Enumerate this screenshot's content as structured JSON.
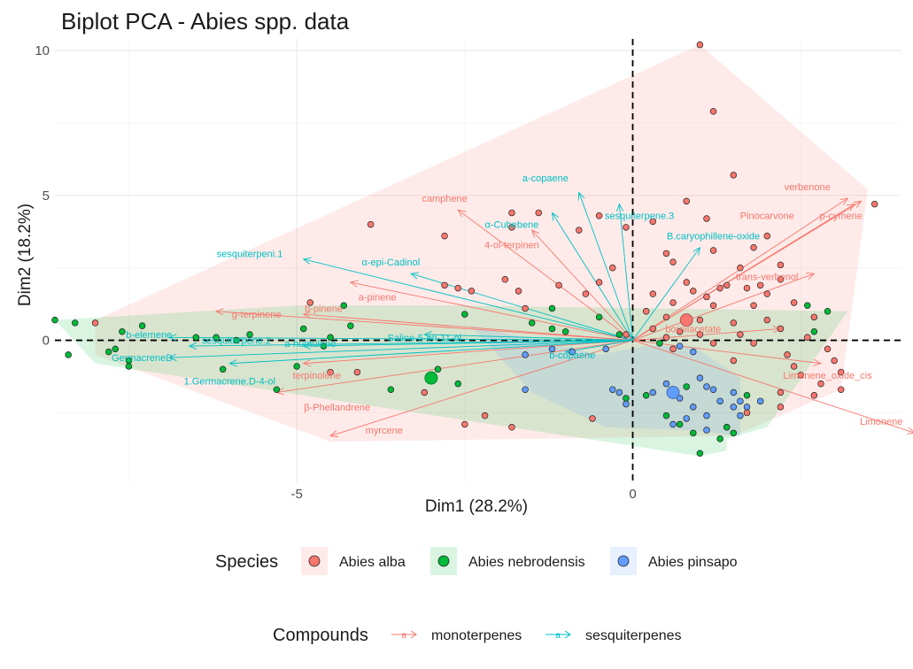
{
  "chart_data": {
    "type": "scatter",
    "title": "Biplot PCA - Abies spp. data",
    "xlabel": "Dim1 (28.2%)",
    "ylabel": "Dim2 (18.2%)",
    "xlim": [
      -8.6,
      4.0
    ],
    "ylim": [
      -4.9,
      10.4
    ],
    "x_ticks": [
      -5,
      0
    ],
    "y_ticks": [
      0,
      5,
      10
    ],
    "grid": true,
    "reference_lines": {
      "x": 0,
      "y": 0
    },
    "colors": {
      "Abies alba": "#f8766d",
      "Abies nebrodensis": "#00ba38",
      "Abies pinsapo": "#619cff",
      "monoterpenes": "#f8766d",
      "sesquiterpenes": "#00bfc4"
    },
    "species_legend": {
      "title": "Species",
      "entries": [
        "Abies alba",
        "Abies nebrodensis",
        "Abies pinsapo"
      ]
    },
    "compounds_legend": {
      "title": "Compounds",
      "key_glyph": "a",
      "entries": [
        "monoterpenes",
        "sesquiterpenes"
      ]
    },
    "legend_position": "bottom",
    "hulls": [
      {
        "species": "Abies alba",
        "points": [
          [
            -8.0,
            0.7
          ],
          [
            1.0,
            10.2
          ],
          [
            3.5,
            5.2
          ],
          [
            3.1,
            -1.7
          ],
          [
            1.5,
            -3.3
          ],
          [
            -4.5,
            -3.5
          ],
          [
            -8.0,
            -0.5
          ]
        ]
      },
      {
        "species": "Abies nebrodensis",
        "points": [
          [
            -8.6,
            0.7
          ],
          [
            -5.0,
            1.2
          ],
          [
            -2.5,
            1.2
          ],
          [
            3.2,
            1.0
          ],
          [
            2.0,
            -3.0
          ],
          [
            1.4,
            -3.4
          ],
          [
            1.4,
            -3.8
          ],
          [
            1.0,
            -4.0
          ],
          [
            -8.0,
            -0.8
          ]
        ]
      },
      {
        "species": "Abies pinsapo",
        "points": [
          [
            -2.4,
            0.5
          ],
          [
            -0.5,
            -0.5
          ],
          [
            0.2,
            -0.2
          ],
          [
            0.9,
            -0.2
          ],
          [
            1.6,
            -1.3
          ],
          [
            1.6,
            -3.3
          ],
          [
            0.8,
            -3.1
          ],
          [
            -0.4,
            -3.0
          ],
          [
            -1.5,
            -1.8
          ]
        ]
      }
    ],
    "points": {
      "Abies alba": [
        [
          1.0,
          10.2
        ],
        [
          1.2,
          7.9
        ],
        [
          3.6,
          4.7
        ],
        [
          -3.9,
          4.0
        ],
        [
          1.5,
          5.7
        ],
        [
          0.8,
          4.8
        ],
        [
          1.1,
          4.2
        ],
        [
          -1.8,
          4.4
        ],
        [
          -1.4,
          4.4
        ],
        [
          -0.5,
          4.3
        ],
        [
          -1.8,
          3.9
        ],
        [
          -2.8,
          3.6
        ],
        [
          -0.1,
          3.9
        ],
        [
          -0.8,
          3.8
        ],
        [
          0.3,
          4.1
        ],
        [
          2.0,
          3.6
        ],
        [
          0.5,
          3.0
        ],
        [
          1.2,
          3.1
        ],
        [
          1.8,
          3.2
        ],
        [
          0.6,
          2.7
        ],
        [
          2.2,
          2.6
        ],
        [
          0.8,
          2.0
        ],
        [
          1.6,
          2.5
        ],
        [
          0.9,
          1.7
        ],
        [
          1.1,
          1.5
        ],
        [
          1.3,
          1.8
        ],
        [
          1.4,
          1.9
        ],
        [
          1.9,
          1.9
        ],
        [
          2.2,
          2.1
        ],
        [
          1.7,
          1.8
        ],
        [
          2.0,
          1.6
        ],
        [
          0.3,
          1.6
        ],
        [
          0.6,
          1.3
        ],
        [
          1.2,
          1.2
        ],
        [
          -2.4,
          1.7
        ],
        [
          -2.6,
          1.8
        ],
        [
          -1.6,
          1.1
        ],
        [
          -1.7,
          1.7
        ],
        [
          -1.1,
          1.9
        ],
        [
          -1.9,
          2.1
        ],
        [
          -2.8,
          1.9
        ],
        [
          -0.7,
          1.6
        ],
        [
          -0.5,
          2.0
        ],
        [
          -0.3,
          2.5
        ],
        [
          0.2,
          1.0
        ],
        [
          0.5,
          0.8
        ],
        [
          1.0,
          0.7
        ],
        [
          1.5,
          0.6
        ],
        [
          2.0,
          0.7
        ],
        [
          1.8,
          1.2
        ],
        [
          2.4,
          1.3
        ],
        [
          2.7,
          0.8
        ],
        [
          2.2,
          0.4
        ],
        [
          1.6,
          0.2
        ],
        [
          1.8,
          -0.1
        ],
        [
          2.3,
          -0.5
        ],
        [
          2.6,
          0.1
        ],
        [
          2.9,
          -0.3
        ],
        [
          3.0,
          -0.7
        ],
        [
          3.1,
          -1.1
        ],
        [
          2.8,
          -1.5
        ],
        [
          2.5,
          -1.2
        ],
        [
          2.2,
          -1.8
        ],
        [
          2.7,
          -1.9
        ],
        [
          3.1,
          -1.7
        ],
        [
          2.4,
          -0.9
        ],
        [
          1.5,
          -0.7
        ],
        [
          1.2,
          -0.1
        ],
        [
          1.0,
          0.2
        ],
        [
          0.7,
          0.3
        ],
        [
          0.5,
          0.1
        ],
        [
          0.3,
          0.4
        ],
        [
          0.6,
          -0.3
        ],
        [
          -0.1,
          0.2
        ],
        [
          -8.0,
          0.6
        ],
        [
          -4.8,
          1.3
        ],
        [
          -4.5,
          -1.1
        ],
        [
          -4.1,
          -1.1
        ],
        [
          -2.5,
          -2.9
        ],
        [
          -2.2,
          -2.6
        ],
        [
          -1.8,
          -3.0
        ],
        [
          -3.1,
          -1.8
        ],
        [
          -0.6,
          -2.7
        ],
        [
          1.4,
          -3.0
        ],
        [
          2.2,
          -2.3
        ],
        [
          1.7,
          -2.5
        ]
      ],
      "Abies nebrodensis": [
        [
          -8.6,
          0.7
        ],
        [
          -8.3,
          0.6
        ],
        [
          -7.6,
          0.3
        ],
        [
          -7.3,
          0.5
        ],
        [
          -7.7,
          -0.3
        ],
        [
          -7.8,
          -0.4
        ],
        [
          -7.5,
          -0.7
        ],
        [
          -7.5,
          -0.9
        ],
        [
          -8.4,
          -0.5
        ],
        [
          -6.5,
          0.1
        ],
        [
          -6.2,
          0.1
        ],
        [
          -5.9,
          0.0
        ],
        [
          -5.7,
          0.2
        ],
        [
          -4.9,
          0.4
        ],
        [
          -4.6,
          -0.2
        ],
        [
          -4.5,
          0.1
        ],
        [
          -4.3,
          1.2
        ],
        [
          -4.2,
          0.5
        ],
        [
          -5.0,
          -0.9
        ],
        [
          -6.1,
          -1.0
        ],
        [
          -5.3,
          -1.7
        ],
        [
          -3.6,
          -1.7
        ],
        [
          -3.0,
          -1.3
        ],
        [
          -2.9,
          -1.0
        ],
        [
          -2.6,
          -1.5
        ],
        [
          -2.5,
          0.9
        ],
        [
          -1.5,
          0.6
        ],
        [
          -1.2,
          0.4
        ],
        [
          -1.0,
          0.3
        ],
        [
          -1.2,
          1.1
        ],
        [
          -0.5,
          0.8
        ],
        [
          -0.2,
          0.2
        ],
        [
          0.5,
          -2.6
        ],
        [
          0.9,
          -3.2
        ],
        [
          1.4,
          -3.0
        ],
        [
          1.5,
          -3.2
        ],
        [
          1.3,
          -3.4
        ],
        [
          1.0,
          -3.9
        ],
        [
          0.7,
          -2.9
        ],
        [
          0.8,
          -1.6
        ],
        [
          1.7,
          -1.9
        ],
        [
          2.6,
          1.2
        ],
        [
          2.9,
          1.0
        ],
        [
          2.7,
          0.3
        ],
        [
          -0.1,
          -2.0
        ],
        [
          0.2,
          -1.9
        ],
        [
          0.4,
          -0.1
        ]
      ],
      "Abies pinsapo": [
        [
          -1.6,
          -0.5
        ],
        [
          -1.2,
          -0.3
        ],
        [
          -0.9,
          -0.4
        ],
        [
          -0.4,
          -0.3
        ],
        [
          -0.2,
          -1.8
        ],
        [
          -0.1,
          -2.2
        ],
        [
          0.3,
          -1.8
        ],
        [
          0.5,
          -1.5
        ],
        [
          0.7,
          -2.0
        ],
        [
          0.9,
          -2.3
        ],
        [
          1.1,
          -1.6
        ],
        [
          1.2,
          -1.7
        ],
        [
          1.5,
          -1.8
        ],
        [
          1.5,
          -2.3
        ],
        [
          1.6,
          -2.1
        ],
        [
          1.7,
          -2.3
        ],
        [
          1.3,
          -2.1
        ],
        [
          1.1,
          -2.6
        ],
        [
          0.8,
          -2.7
        ],
        [
          0.6,
          -2.9
        ],
        [
          1.1,
          -3.1
        ],
        [
          1.6,
          -2.6
        ],
        [
          1.9,
          -2.1
        ],
        [
          1.0,
          -1.3
        ],
        [
          0.9,
          -0.4
        ],
        [
          0.7,
          -0.2
        ],
        [
          -0.3,
          -1.7
        ],
        [
          -1.6,
          -1.7
        ]
      ]
    },
    "centroids": {
      "Abies alba": [
        0.8,
        0.7
      ],
      "Abies nebrodensis": [
        -3.0,
        -1.3
      ],
      "Abies pinsapo": [
        0.6,
        -1.8
      ]
    },
    "vectors": [
      {
        "label": "verbenone",
        "group": "monoterpenes",
        "end": [
          3.2,
          4.9
        ],
        "label_at": [
          2.6,
          5.3
        ]
      },
      {
        "label": "Pinocarvone",
        "group": "monoterpenes",
        "end": [
          3.3,
          4.7
        ],
        "label_at": [
          2.0,
          4.3
        ]
      },
      {
        "label": "p-cymene",
        "group": "monoterpenes",
        "end": [
          3.4,
          4.8
        ],
        "label_at": [
          3.1,
          4.3
        ]
      },
      {
        "label": "trans-verbenol",
        "group": "monoterpenes",
        "end": [
          2.7,
          2.3
        ],
        "label_at": [
          2.0,
          2.2
        ]
      },
      {
        "label": "bornilacetate",
        "group": "monoterpenes",
        "end": [
          2.2,
          0.4
        ],
        "label_at": [
          0.9,
          0.4
        ]
      },
      {
        "label": "Limonene_oxide_cis",
        "group": "monoterpenes",
        "end": [
          2.8,
          -0.8
        ],
        "label_at": [
          2.9,
          -1.2
        ]
      },
      {
        "label": "Limonene",
        "group": "monoterpenes",
        "end": [
          4.2,
          -3.2
        ],
        "label_at": [
          3.7,
          -2.8
        ]
      },
      {
        "label": "camphene",
        "group": "monoterpenes",
        "end": [
          -2.6,
          4.5
        ],
        "label_at": [
          -2.8,
          4.9
        ]
      },
      {
        "label": "4-ol-terpinen",
        "group": "monoterpenes",
        "end": [
          -1.5,
          3.8
        ],
        "label_at": [
          -1.8,
          3.3
        ]
      },
      {
        "label": "a-pinene",
        "group": "monoterpenes",
        "end": [
          -4.2,
          2.0
        ],
        "label_at": [
          -3.8,
          1.5
        ]
      },
      {
        "label": "g-terpinene",
        "group": "monoterpenes",
        "end": [
          -6.2,
          1.0
        ],
        "label_at": [
          -5.6,
          0.9
        ]
      },
      {
        "label": "b-pinene",
        "group": "monoterpenes",
        "end": [
          -4.9,
          0.9
        ],
        "label_at": [
          -4.6,
          1.1
        ]
      },
      {
        "label": "terpinolene",
        "group": "monoterpenes",
        "end": [
          -4.9,
          -0.8
        ],
        "label_at": [
          -4.7,
          -1.2
        ]
      },
      {
        "label": "β-Phellandrene",
        "group": "monoterpenes",
        "end": [
          -5.3,
          -1.8
        ],
        "label_at": [
          -4.4,
          -2.3
        ]
      },
      {
        "label": "myrcene",
        "group": "monoterpenes",
        "end": [
          -4.5,
          -3.3
        ],
        "label_at": [
          -3.7,
          -3.1
        ]
      },
      {
        "label": "a-copaene",
        "group": "sesquiterpenes",
        "end": [
          -0.8,
          5.1
        ],
        "label_at": [
          -1.3,
          5.6
        ]
      },
      {
        "label": "sesquiterpene.3",
        "group": "sesquiterpenes",
        "end": [
          -0.2,
          4.7
        ],
        "label_at": [
          0.1,
          4.3
        ]
      },
      {
        "label": "α-Cubebene",
        "group": "sesquiterpenes",
        "end": [
          -1.2,
          4.4
        ],
        "label_at": [
          -1.8,
          4.0
        ]
      },
      {
        "label": "B.caryophillene-oxide",
        "group": "sesquiterpenes",
        "end": [
          1.0,
          3.2
        ],
        "label_at": [
          1.2,
          3.6
        ]
      },
      {
        "label": "sesquiterpeni.1",
        "group": "sesquiterpenes",
        "end": [
          -4.9,
          2.8
        ],
        "label_at": [
          -5.7,
          3.0
        ]
      },
      {
        "label": "α-epi-Cadinol",
        "group": "sesquiterpenes",
        "end": [
          -3.3,
          2.3
        ],
        "label_at": [
          -3.6,
          2.7
        ]
      },
      {
        "label": "b-elemene",
        "group": "sesquiterpenes",
        "end": [
          -6.9,
          0.1
        ],
        "label_at": [
          -7.2,
          0.2
        ]
      },
      {
        "label": "sesquiterpene.2",
        "group": "sesquiterpenes",
        "end": [
          -6.6,
          -0.2
        ],
        "label_at": [
          -5.9,
          0.0
        ]
      },
      {
        "label": "a-humulene",
        "group": "sesquiterpenes",
        "end": [
          -4.9,
          -0.2
        ],
        "label_at": [
          -4.8,
          -0.1
        ]
      },
      {
        "label": "Saline-5-en-11-ol",
        "group": "sesquiterpenes",
        "end": [
          -3.1,
          0.2
        ],
        "label_at": [
          -3.1,
          0.1
        ]
      },
      {
        "label": "GermacreneD",
        "group": "sesquiterpenes",
        "end": [
          -6.9,
          -0.6
        ],
        "label_at": [
          -7.3,
          -0.6
        ]
      },
      {
        "label": "1.Germacrene.D-4-ol",
        "group": "sesquiterpenes",
        "end": [
          -6.0,
          -0.8
        ],
        "label_at": [
          -6.0,
          -1.4
        ]
      },
      {
        "label": "b-copaene",
        "group": "sesquiterpenes",
        "end": [
          -1.0,
          -0.4
        ],
        "label_at": [
          -0.9,
          -0.5
        ]
      }
    ]
  }
}
